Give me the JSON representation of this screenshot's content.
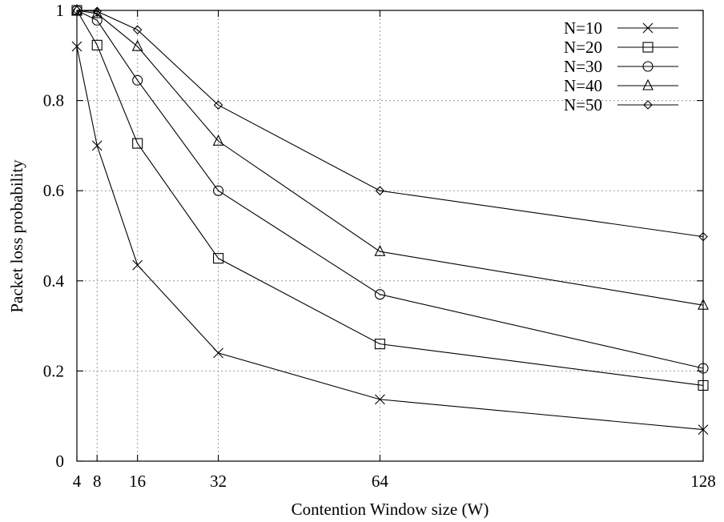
{
  "chart_data": {
    "type": "line",
    "xlabel": "Contention Window size (W)",
    "ylabel": "Packet loss probability",
    "x": [
      4,
      8,
      16,
      32,
      64,
      128
    ],
    "xlim": [
      4,
      128
    ],
    "ylim": [
      0,
      1
    ],
    "xticks": [
      4,
      8,
      16,
      32,
      64,
      128
    ],
    "yticks": [
      0,
      0.2,
      0.4,
      0.6,
      0.8,
      1
    ],
    "ytick_labels": [
      "0",
      "0.2",
      "0.4",
      "0.6",
      "0.8",
      "1"
    ],
    "grid": true,
    "legend_position": "top-right",
    "series": [
      {
        "name": "N=10",
        "marker": "cross",
        "values": [
          0.92,
          0.7,
          0.435,
          0.24,
          0.137,
          0.07
        ]
      },
      {
        "name": "N=20",
        "marker": "square",
        "values": [
          1.0,
          0.923,
          0.705,
          0.45,
          0.26,
          0.168
        ]
      },
      {
        "name": "N=30",
        "marker": "circle",
        "values": [
          1.0,
          0.978,
          0.845,
          0.6,
          0.37,
          0.206
        ]
      },
      {
        "name": "N=40",
        "marker": "triangle",
        "values": [
          1.0,
          0.993,
          0.92,
          0.71,
          0.465,
          0.346
        ]
      },
      {
        "name": "N=50",
        "marker": "diamond",
        "values": [
          1.0,
          0.998,
          0.957,
          0.79,
          0.6,
          0.498
        ]
      }
    ]
  }
}
